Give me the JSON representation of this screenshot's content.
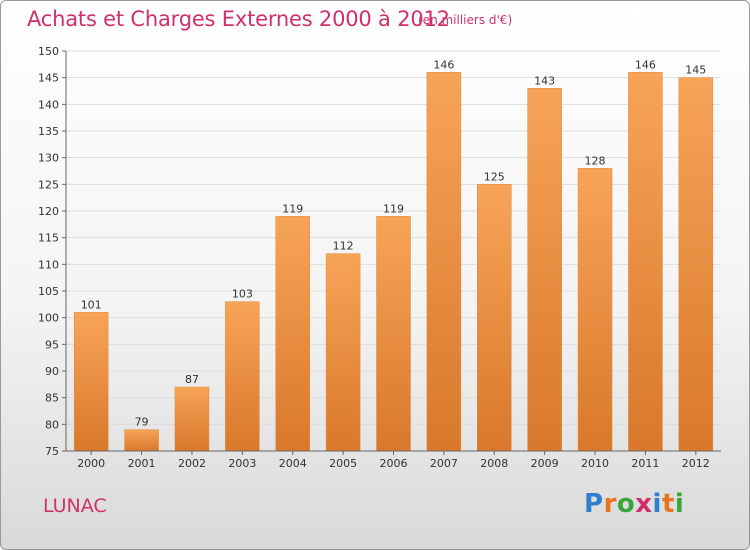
{
  "header": {
    "title": "Achats et Charges Externes 2000 à 2012",
    "unit": "(en milliers d'€)"
  },
  "commune": "LUNAC",
  "logo": {
    "text": "Proxiti",
    "letters": [
      {
        "ch": "P",
        "color": "#2d7fd0"
      },
      {
        "ch": "r",
        "color": "#e8741e"
      },
      {
        "ch": "o",
        "color": "#3aa63a"
      },
      {
        "ch": "x",
        "color": "#d0306a"
      },
      {
        "ch": "i",
        "color": "#2d7fd0"
      },
      {
        "ch": "t",
        "color": "#e8741e"
      },
      {
        "ch": "i",
        "color": "#3aa63a"
      }
    ]
  },
  "colors": {
    "bar_light": "#f7a458",
    "bar_dark": "#d9782b",
    "text_accent": "#d0306a"
  },
  "chart_data": {
    "type": "bar",
    "title": "Achats et Charges Externes 2000 à 2012",
    "xlabel": "",
    "ylabel": "",
    "categories": [
      "2000",
      "2001",
      "2002",
      "2003",
      "2004",
      "2005",
      "2006",
      "2007",
      "2008",
      "2009",
      "2010",
      "2011",
      "2012"
    ],
    "values": [
      101,
      79,
      87,
      103,
      119,
      112,
      119,
      146,
      125,
      143,
      128,
      146,
      145
    ],
    "ylim": [
      75,
      150
    ],
    "yticks": [
      75,
      80,
      85,
      90,
      95,
      100,
      105,
      110,
      115,
      120,
      125,
      130,
      135,
      140,
      145,
      150
    ],
    "grid": true
  }
}
